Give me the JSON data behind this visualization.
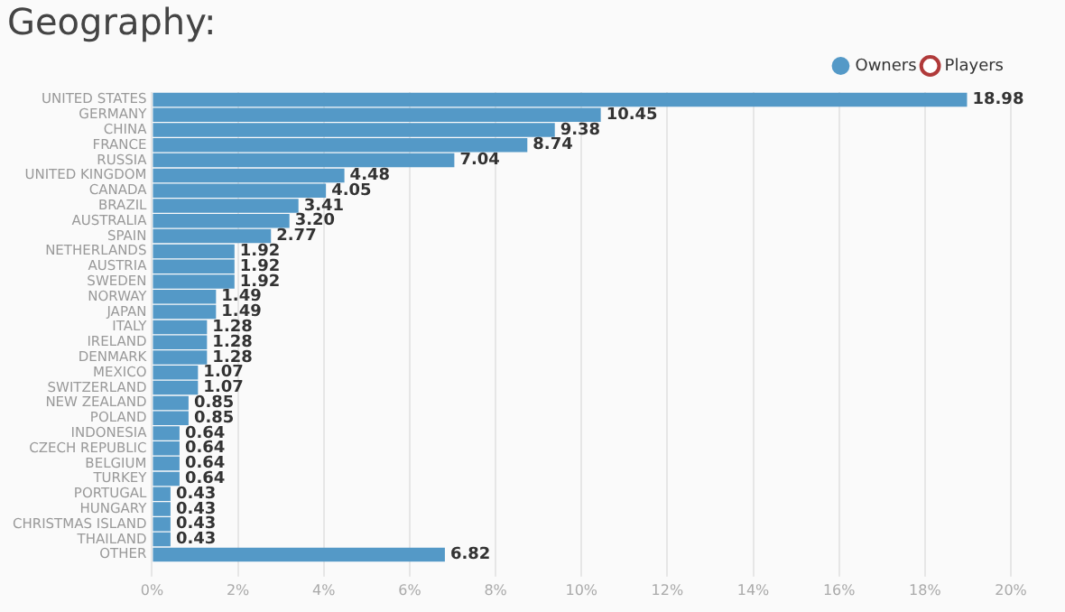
{
  "chart_data": {
    "type": "bar",
    "orientation": "horizontal",
    "title": "Geography:",
    "categories": [
      "UNITED STATES",
      "GERMANY",
      "CHINA",
      "FRANCE",
      "RUSSIA",
      "UNITED KINGDOM",
      "CANADA",
      "BRAZIL",
      "AUSTRALIA",
      "SPAIN",
      "NETHERLANDS",
      "AUSTRIA",
      "SWEDEN",
      "NORWAY",
      "JAPAN",
      "ITALY",
      "IRELAND",
      "DENMARK",
      "MEXICO",
      "SWITZERLAND",
      "NEW ZEALAND",
      "POLAND",
      "INDONESIA",
      "CZECH REPUBLIC",
      "BELGIUM",
      "TURKEY",
      "PORTUGAL",
      "HUNGARY",
      "CHRISTMAS ISLAND",
      "THAILAND",
      "OTHER"
    ],
    "series": [
      {
        "name": "Owners",
        "color": "#5499c7",
        "values": [
          18.98,
          10.45,
          9.38,
          8.74,
          7.04,
          4.48,
          4.05,
          3.41,
          3.2,
          2.77,
          1.92,
          1.92,
          1.92,
          1.49,
          1.49,
          1.28,
          1.28,
          1.28,
          1.07,
          1.07,
          0.85,
          0.85,
          0.64,
          0.64,
          0.64,
          0.64,
          0.43,
          0.43,
          0.43,
          0.43,
          6.82
        ],
        "value_labels": [
          "18.98",
          "10.45",
          "9.38",
          "8.74",
          "7.04",
          "4.48",
          "4.05",
          "3.41",
          "3.20",
          "2.77",
          "1.92",
          "1.92",
          "1.92",
          "1.49",
          "1.49",
          "1.28",
          "1.28",
          "1.28",
          "1.07",
          "1.07",
          "0.85",
          "0.85",
          "0.64",
          "0.64",
          "0.64",
          "0.64",
          "0.43",
          "0.43",
          "0.43",
          "0.43",
          "6.82"
        ]
      },
      {
        "name": "Players",
        "color": "#b03a3a",
        "values": [
          null,
          null,
          null,
          null,
          null,
          null,
          null,
          null,
          null,
          null,
          null,
          null,
          null,
          null,
          null,
          null,
          null,
          null,
          null,
          null,
          null,
          null,
          null,
          null,
          null,
          null,
          null,
          null,
          null,
          null,
          null
        ]
      }
    ],
    "xlim": [
      0,
      20
    ],
    "xticks": [
      {
        "value": 0,
        "label": "0%"
      },
      {
        "value": 2,
        "label": "2%"
      },
      {
        "value": 4,
        "label": "4%"
      },
      {
        "value": 6,
        "label": "6%"
      },
      {
        "value": 8,
        "label": "8%"
      },
      {
        "value": 10,
        "label": "10%"
      },
      {
        "value": 12,
        "label": "12%"
      },
      {
        "value": 14,
        "label": "14%"
      },
      {
        "value": 16,
        "label": "16%"
      },
      {
        "value": 18,
        "label": "18%"
      },
      {
        "value": 20,
        "label": "20%"
      }
    ],
    "grid": "x",
    "legend": "top right"
  }
}
